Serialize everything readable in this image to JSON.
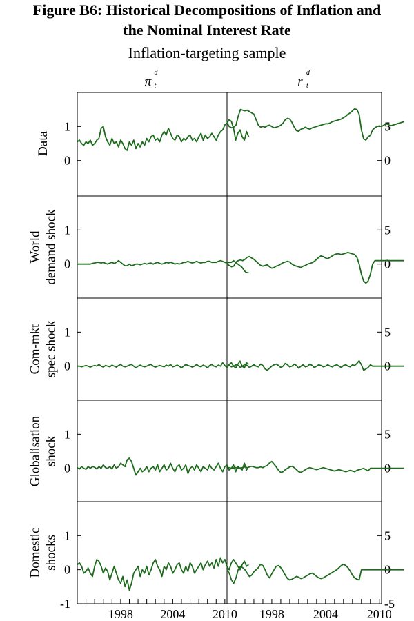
{
  "title_line1": "Figure B6: Historical Decompositions of Inflation and",
  "title_line2": "the Nominal Interest Rate",
  "subtitle": "Inflation-targeting sample",
  "chart_data": {
    "type": "line",
    "columns": [
      {
        "key": "pi",
        "header": "π",
        "header_sup": "d",
        "header_sub": "t",
        "axis_side": "left",
        "ylim": [
          -1,
          2
        ],
        "ticks": [
          -1,
          0,
          1
        ]
      },
      {
        "key": "r",
        "header": "r",
        "header_sup": "d",
        "header_sub": "t",
        "axis_side": "right",
        "ylim": [
          -5,
          10
        ],
        "ticks": [
          -5,
          0,
          5
        ]
      }
    ],
    "rows": [
      {
        "label_lines": [
          "Data"
        ]
      },
      {
        "label_lines": [
          "World",
          "demand shock"
        ]
      },
      {
        "label_lines": [
          "Com-mkt",
          "spec shock"
        ]
      },
      {
        "label_lines": [
          "Globalisation",
          "shock"
        ]
      },
      {
        "label_lines": [
          "Domestic",
          "shocks"
        ]
      }
    ],
    "x_ticks": [
      "1998",
      "2004",
      "2010"
    ],
    "x_range": [
      1993.0,
      2010.25
    ],
    "x_start": 1993.0,
    "x_step": 0.25,
    "line_color": "#1e6b1e",
    "series": {
      "pi": [
        [
          0.55,
          0.6,
          0.5,
          0.45,
          0.55,
          0.5,
          0.6,
          0.45,
          0.5,
          0.6,
          0.65,
          0.95,
          1.0,
          0.7,
          0.55,
          0.45,
          0.65,
          0.5,
          0.55,
          0.4,
          0.6,
          0.5,
          0.35,
          0.3,
          0.55,
          0.45,
          0.6,
          0.35,
          0.5,
          0.4,
          0.55,
          0.45,
          0.65,
          0.55,
          0.7,
          0.75,
          0.6,
          0.65,
          0.55,
          0.75,
          0.85,
          0.75,
          0.95,
          0.8,
          0.65,
          0.6,
          0.75,
          0.7,
          0.55,
          0.65,
          0.6,
          0.7,
          0.75,
          0.6,
          0.65,
          0.55,
          0.7,
          0.8,
          0.6,
          0.75,
          0.65,
          0.7,
          0.8,
          0.7,
          0.6,
          0.75,
          0.85,
          0.9,
          1.05,
          1.1,
          1.2,
          1.15,
          0.95,
          0.6,
          0.8,
          0.9,
          0.7,
          0.6,
          0.85,
          0.7
        ],
        [
          0.0,
          0.0,
          0.0,
          0.0,
          0.0,
          0.0,
          0.0,
          0.02,
          0.03,
          0.05,
          0.05,
          0.03,
          0.05,
          0.02,
          0.0,
          0.03,
          0.05,
          0.02,
          0.05,
          0.1,
          0.05,
          0.0,
          -0.05,
          -0.05,
          0.0,
          -0.05,
          -0.03,
          0.0,
          0.0,
          -0.02,
          0.0,
          0.02,
          0.0,
          0.02,
          0.03,
          0.0,
          0.03,
          0.05,
          0.02,
          0.0,
          0.02,
          0.05,
          0.03,
          0.05,
          0.03,
          0.0,
          0.02,
          0.0,
          0.02,
          0.05,
          0.05,
          0.08,
          0.05,
          0.03,
          0.05,
          0.08,
          0.05,
          0.03,
          0.05,
          0.05,
          0.08,
          0.08,
          0.05,
          0.05,
          0.05,
          0.08,
          0.1,
          0.08,
          0.05,
          0.03,
          0.05,
          0.05,
          0.1,
          0.05,
          0.0,
          -0.05,
          -0.1,
          -0.2,
          -0.25,
          -0.25
        ],
        [
          0.0,
          0.0,
          -0.02,
          0.0,
          0.02,
          0.0,
          -0.03,
          0.0,
          0.02,
          0.0,
          0.05,
          0.0,
          -0.03,
          0.02,
          0.0,
          -0.02,
          0.03,
          0.0,
          -0.03,
          0.02,
          0.05,
          0.0,
          -0.02,
          0.0,
          0.03,
          0.05,
          0.0,
          -0.05,
          0.0,
          0.03,
          0.0,
          -0.02,
          0.0,
          0.03,
          0.05,
          0.0,
          -0.03,
          0.0,
          0.02,
          0.0,
          -0.02,
          0.03,
          0.0,
          0.05,
          -0.02,
          0.0,
          0.03,
          0.0,
          -0.05,
          0.0,
          0.05,
          0.02,
          0.0,
          -0.03,
          0.0,
          0.05,
          0.0,
          -0.02,
          0.03,
          0.0,
          -0.05,
          0.02,
          0.05,
          0.0,
          -0.02,
          0.03,
          0.0,
          0.1,
          0.02,
          -0.05,
          0.05,
          0.1,
          0.0,
          -0.05,
          0.05,
          0.15,
          0.0,
          -0.05,
          0.1,
          0.05
        ],
        [
          0.02,
          -0.02,
          0.05,
          0.0,
          -0.03,
          0.05,
          0.0,
          0.05,
          0.03,
          -0.02,
          0.05,
          0.0,
          0.1,
          0.02,
          0.0,
          0.05,
          -0.02,
          0.1,
          0.0,
          0.05,
          0.15,
          0.1,
          0.05,
          0.25,
          0.3,
          0.2,
          0.0,
          -0.2,
          -0.1,
          0.0,
          -0.1,
          -0.05,
          0.05,
          -0.1,
          0.0,
          0.05,
          -0.05,
          0.1,
          -0.1,
          0.0,
          0.1,
          -0.05,
          0.0,
          0.15,
          0.0,
          -0.1,
          0.05,
          0.1,
          -0.05,
          0.0,
          0.1,
          -0.15,
          0.0,
          0.05,
          -0.05,
          0.1,
          0.0,
          -0.1,
          0.05,
          0.0,
          -0.05,
          0.1,
          0.0,
          -0.05,
          0.05,
          0.15,
          0.0,
          -0.1,
          0.05,
          0.1,
          -0.05,
          0.0,
          0.1,
          -0.1,
          0.05,
          0.0,
          -0.05,
          0.15,
          -0.05,
          0.05
        ],
        [
          0.15,
          0.2,
          0.1,
          -0.1,
          -0.05,
          0.05,
          -0.1,
          -0.2,
          0.1,
          0.3,
          0.25,
          0.1,
          -0.1,
          0.05,
          -0.05,
          -0.3,
          -0.1,
          0.1,
          -0.1,
          -0.3,
          -0.4,
          -0.2,
          -0.5,
          -0.3,
          -0.6,
          -0.4,
          -0.1,
          0.0,
          0.1,
          -0.2,
          0.0,
          -0.1,
          0.1,
          -0.15,
          0.0,
          0.2,
          0.3,
          0.1,
          0.0,
          -0.2,
          0.1,
          0.0,
          0.2,
          0.1,
          -0.1,
          0.0,
          0.15,
          0.2,
          0.0,
          -0.1,
          0.1,
          -0.05,
          0.2,
          0.1,
          -0.1,
          0.0,
          0.1,
          0.2,
          0.0,
          0.15,
          0.25,
          0.1,
          0.2,
          0.05,
          0.3,
          0.1,
          0.35,
          0.2,
          0.3,
          0.1,
          0.0,
          0.2,
          0.3,
          0.2,
          0.1,
          0.0,
          0.15,
          0.25,
          0.1,
          0.15
        ]
      ],
      "r": [
        [
          5.5,
          5.0,
          4.8,
          4.9,
          5.2,
          6.5,
          7.5,
          7.4,
          7.3,
          7.4,
          7.2,
          7.0,
          6.8,
          6.0,
          5.2,
          4.9,
          5.0,
          4.9,
          5.1,
          5.2,
          5.0,
          4.8,
          4.9,
          5.0,
          5.2,
          5.5,
          6.0,
          6.2,
          6.1,
          5.6,
          4.9,
          4.4,
          4.3,
          4.6,
          4.7,
          4.9,
          4.7,
          4.6,
          4.8,
          4.9,
          5.0,
          5.1,
          5.2,
          5.3,
          5.4,
          5.4,
          5.5,
          5.7,
          5.8,
          5.9,
          6.0,
          6.1,
          6.3,
          6.5,
          6.8,
          7.0,
          7.3,
          7.6,
          7.5,
          6.8,
          4.5,
          3.2,
          3.0,
          3.5,
          3.7,
          4.5,
          4.8,
          5.0,
          5.1,
          5.0,
          5.2,
          5.4,
          5.3,
          5.1,
          5.2,
          5.3,
          5.4,
          5.5,
          5.6,
          5.7
        ],
        [
          0.0,
          -0.2,
          -0.4,
          -0.3,
          0.3,
          0.5,
          0.6,
          0.5,
          0.7,
          1.0,
          1.1,
          0.9,
          0.7,
          0.4,
          0.1,
          -0.2,
          -0.3,
          -0.2,
          -0.1,
          -0.4,
          -0.6,
          -0.5,
          -0.3,
          -0.2,
          0.0,
          0.2,
          0.3,
          0.4,
          0.3,
          0.0,
          -0.2,
          -0.3,
          -0.4,
          -0.5,
          -0.3,
          -0.2,
          0.0,
          0.1,
          0.2,
          0.4,
          0.7,
          1.0,
          1.2,
          1.1,
          0.9,
          0.8,
          1.0,
          1.2,
          1.4,
          1.5,
          1.5,
          1.4,
          1.5,
          1.6,
          1.7,
          1.6,
          1.5,
          1.4,
          1.0,
          0.0,
          -1.5,
          -2.5,
          -2.8,
          -2.5,
          -1.5,
          0.0,
          0.5,
          0.5,
          0.5,
          0.5,
          0.5,
          0.5,
          0.5,
          0.5,
          0.5,
          0.5,
          0.5,
          0.5,
          0.5,
          0.5
        ],
        [
          0.0,
          0.1,
          -0.1,
          0.0,
          0.2,
          0.1,
          -0.2,
          0.0,
          0.3,
          0.1,
          -0.2,
          0.0,
          0.2,
          0.0,
          -0.1,
          0.3,
          0.1,
          -0.4,
          -0.6,
          -0.3,
          0.0,
          0.2,
          0.3,
          0.1,
          -0.2,
          0.0,
          0.4,
          0.2,
          -0.1,
          0.0,
          0.3,
          0.1,
          -0.3,
          0.0,
          0.2,
          -0.1,
          0.0,
          0.3,
          0.1,
          -0.2,
          0.0,
          0.2,
          0.1,
          -0.1,
          0.0,
          0.2,
          0.0,
          -0.1,
          0.1,
          0.2,
          0.0,
          -0.2,
          0.1,
          0.2,
          0.0,
          -0.1,
          0.2,
          0.1,
          0.4,
          0.8,
          0.2,
          -0.6,
          -0.4,
          -0.2,
          0.2,
          0.0,
          0.0,
          0.0,
          0.0,
          0.0,
          0.0,
          0.0,
          0.0,
          0.0,
          0.0,
          0.0,
          0.0,
          0.0,
          0.0,
          0.0
        ],
        [
          0.0,
          0.1,
          0.0,
          0.05,
          0.1,
          0.0,
          0.05,
          0.1,
          0.2,
          0.1,
          0.2,
          0.3,
          0.2,
          0.1,
          0.1,
          0.2,
          0.1,
          0.3,
          0.4,
          0.8,
          1.0,
          0.6,
          0.2,
          -0.3,
          -0.6,
          -0.5,
          -0.2,
          0.0,
          0.2,
          0.3,
          0.1,
          -0.2,
          -0.5,
          -0.6,
          -0.4,
          -0.2,
          0.0,
          0.1,
          0.0,
          -0.1,
          -0.2,
          -0.1,
          0.0,
          0.1,
          0.0,
          -0.1,
          -0.2,
          -0.3,
          -0.4,
          -0.3,
          -0.2,
          -0.3,
          -0.4,
          -0.5,
          -0.4,
          -0.3,
          -0.4,
          -0.5,
          -0.3,
          -0.2,
          -0.1,
          0.0,
          -0.2,
          -0.4,
          0.0,
          0.0,
          0.0,
          0.0,
          0.0,
          0.0,
          0.0,
          0.0,
          0.0,
          0.0,
          0.0,
          0.0,
          0.0,
          0.0,
          0.0,
          0.0
        ],
        [
          0.0,
          -0.5,
          -1.5,
          -2.0,
          -1.2,
          0.0,
          0.5,
          0.3,
          0.0,
          -0.5,
          -1.0,
          -0.8,
          -0.3,
          0.0,
          0.3,
          0.8,
          0.6,
          0.0,
          -0.8,
          -1.2,
          -0.6,
          0.0,
          0.5,
          0.6,
          0.3,
          -0.2,
          -0.8,
          -1.3,
          -1.5,
          -1.4,
          -1.2,
          -1.0,
          -1.1,
          -1.3,
          -1.2,
          -1.0,
          -0.8,
          -0.6,
          -0.5,
          -0.7,
          -1.0,
          -1.2,
          -1.3,
          -1.2,
          -1.0,
          -0.8,
          -0.6,
          -0.4,
          -0.2,
          0.0,
          0.3,
          0.6,
          0.8,
          0.6,
          0.3,
          -0.2,
          -0.8,
          -1.2,
          -1.4,
          -1.5,
          0.0,
          0.0,
          0.0,
          0.0,
          0.0,
          0.0,
          0.0,
          0.0,
          0.0,
          0.0,
          0.0,
          0.0,
          0.0,
          0.0,
          0.0,
          0.0,
          0.0,
          0.0,
          0.0,
          0.0
        ]
      ]
    }
  }
}
